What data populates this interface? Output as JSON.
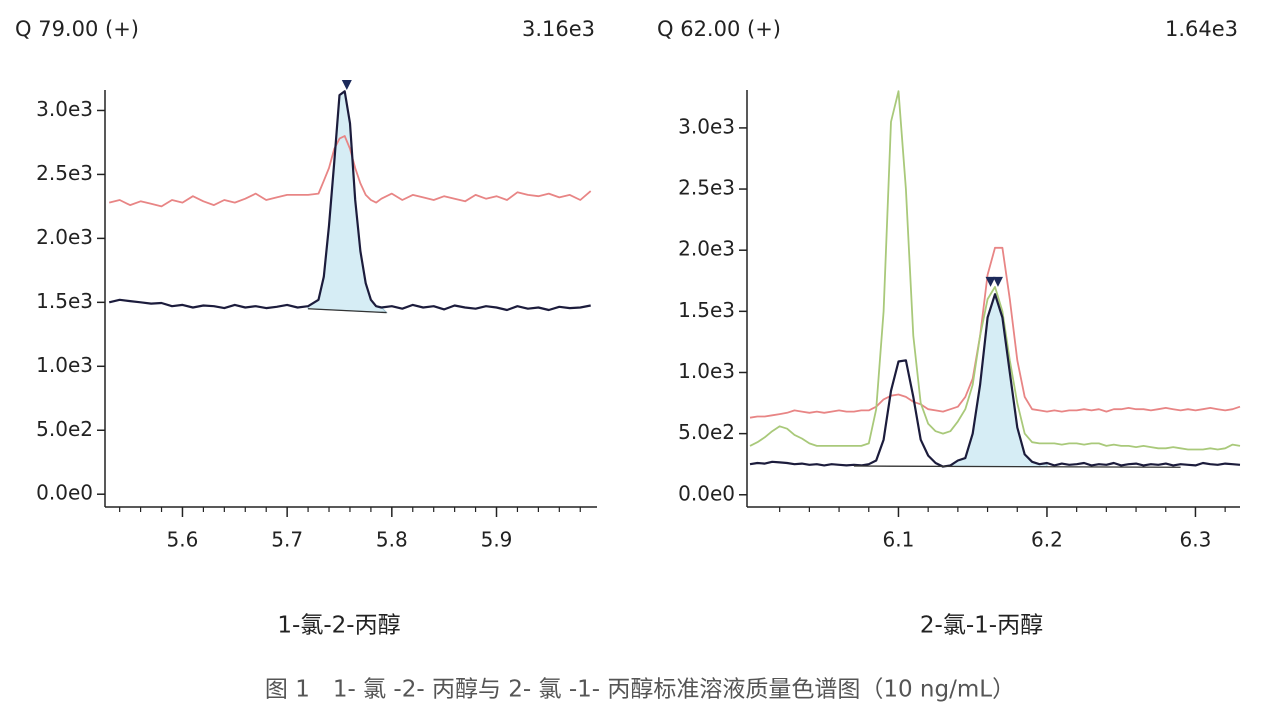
{
  "chart_data": [
    {
      "type": "line",
      "title": "Q 79.00 (+)",
      "intensity": "3.16e3",
      "caption": "1-氯-2-丙醇",
      "xlim": [
        5.526,
        5.996
      ],
      "xticks": [
        5.6,
        5.7,
        5.8,
        5.9
      ],
      "xminorticks": [
        5.54,
        5.56,
        5.58,
        5.62,
        5.64,
        5.66,
        5.68,
        5.72,
        5.74,
        5.76,
        5.78,
        5.82,
        5.84,
        5.86,
        5.88,
        5.92,
        5.94,
        5.96,
        5.98
      ],
      "ylim": [
        -100,
        3160
      ],
      "yticks": [
        {
          "value": 0,
          "label": "0.0e0"
        },
        {
          "value": 500,
          "label": "5.0e2"
        },
        {
          "value": 1000,
          "label": "1.0e3"
        },
        {
          "value": 1500,
          "label": "1.5e3"
        },
        {
          "value": 2000,
          "label": "2.0e3"
        },
        {
          "value": 2500,
          "label": "2.5e3"
        },
        {
          "value": 3000,
          "label": "3.0e3"
        }
      ],
      "x": [
        5.53,
        5.54,
        5.55,
        5.56,
        5.57,
        5.58,
        5.59,
        5.6,
        5.61,
        5.62,
        5.63,
        5.64,
        5.65,
        5.66,
        5.67,
        5.68,
        5.69,
        5.7,
        5.71,
        5.72,
        5.73,
        5.735,
        5.74,
        5.745,
        5.75,
        5.755,
        5.76,
        5.765,
        5.77,
        5.775,
        5.78,
        5.785,
        5.79,
        5.8,
        5.81,
        5.82,
        5.83,
        5.84,
        5.85,
        5.86,
        5.87,
        5.88,
        5.89,
        5.9,
        5.91,
        5.92,
        5.93,
        5.94,
        5.95,
        5.96,
        5.97,
        5.98,
        5.99
      ],
      "series": [
        {
          "color": "#e88585",
          "values": [
            2280,
            2300,
            2260,
            2290,
            2270,
            2250,
            2300,
            2280,
            2330,
            2290,
            2260,
            2300,
            2280,
            2310,
            2350,
            2300,
            2320,
            2340,
            2340,
            2340,
            2350,
            2450,
            2550,
            2700,
            2780,
            2800,
            2700,
            2550,
            2430,
            2340,
            2300,
            2280,
            2310,
            2350,
            2300,
            2340,
            2320,
            2300,
            2330,
            2310,
            2290,
            2340,
            2310,
            2330,
            2300,
            2360,
            2340,
            2330,
            2350,
            2320,
            2340,
            2300,
            2370
          ]
        },
        {
          "color": "#1c1c3c",
          "values": [
            1500,
            1520,
            1510,
            1500,
            1490,
            1495,
            1470,
            1480,
            1460,
            1475,
            1470,
            1455,
            1480,
            1460,
            1470,
            1455,
            1465,
            1480,
            1460,
            1470,
            1520,
            1700,
            2100,
            2600,
            3120,
            3150,
            2900,
            2300,
            1900,
            1650,
            1520,
            1470,
            1460,
            1470,
            1450,
            1480,
            1460,
            1470,
            1445,
            1475,
            1460,
            1450,
            1470,
            1460,
            1440,
            1470,
            1450,
            1460,
            1440,
            1465,
            1455,
            1460,
            1475
          ]
        }
      ],
      "peak_series": 1,
      "peak_range": [
        5.72,
        5.795
      ],
      "baseline": {
        "x": [
          5.72,
          5.795
        ],
        "values": [
          1450,
          1420
        ]
      },
      "apexes": [
        {
          "x": 5.757,
          "value": 3160
        }
      ],
      "peak_fill": "#d6edf5"
    },
    {
      "type": "line",
      "title": "Q 62.00 (+)",
      "intensity": "1.64e3",
      "caption": "2-氯-1-丙醇",
      "xlim": [
        5.998,
        6.33
      ],
      "xticks": [
        6.1,
        6.2,
        6.3
      ],
      "xminorticks": [
        6.02,
        6.04,
        6.06,
        6.08,
        6.12,
        6.14,
        6.16,
        6.18,
        6.22,
        6.24,
        6.26,
        6.28,
        6.32
      ],
      "ylim": [
        -100,
        3310
      ],
      "yticks": [
        {
          "value": 0,
          "label": "0.0e0"
        },
        {
          "value": 500,
          "label": "5.0e2"
        },
        {
          "value": 1000,
          "label": "1.0e3"
        },
        {
          "value": 1500,
          "label": "1.5e3"
        },
        {
          "value": 2000,
          "label": "2.0e3"
        },
        {
          "value": 2500,
          "label": "2.5e3"
        },
        {
          "value": 3000,
          "label": "3.0e3"
        }
      ],
      "x": [
        6.0,
        6.005,
        6.01,
        6.015,
        6.02,
        6.025,
        6.03,
        6.035,
        6.04,
        6.045,
        6.05,
        6.055,
        6.06,
        6.065,
        6.07,
        6.075,
        6.08,
        6.085,
        6.09,
        6.095,
        6.1,
        6.105,
        6.11,
        6.115,
        6.12,
        6.125,
        6.13,
        6.135,
        6.14,
        6.145,
        6.15,
        6.155,
        6.16,
        6.165,
        6.17,
        6.175,
        6.18,
        6.185,
        6.19,
        6.195,
        6.2,
        6.205,
        6.21,
        6.215,
        6.22,
        6.225,
        6.23,
        6.235,
        6.24,
        6.245,
        6.25,
        6.255,
        6.26,
        6.265,
        6.27,
        6.275,
        6.28,
        6.285,
        6.29,
        6.295,
        6.3,
        6.305,
        6.31,
        6.315,
        6.32,
        6.325,
        6.33
      ],
      "series": [
        {
          "color": "#e88585",
          "values": [
            630,
            640,
            640,
            650,
            660,
            670,
            690,
            680,
            670,
            680,
            670,
            680,
            690,
            680,
            680,
            690,
            690,
            720,
            780,
            810,
            820,
            800,
            760,
            740,
            700,
            690,
            680,
            700,
            720,
            800,
            950,
            1300,
            1800,
            2020,
            2020,
            1600,
            1100,
            800,
            700,
            690,
            680,
            690,
            680,
            690,
            690,
            700,
            690,
            700,
            680,
            700,
            700,
            710,
            700,
            700,
            690,
            700,
            710,
            700,
            690,
            700,
            690,
            700,
            710,
            700,
            690,
            700,
            720
          ]
        },
        {
          "color": "#a9c97a",
          "values": [
            400,
            430,
            470,
            520,
            560,
            540,
            490,
            460,
            420,
            400,
            400,
            400,
            400,
            400,
            400,
            400,
            420,
            700,
            1500,
            3050,
            3300,
            2500,
            1300,
            750,
            580,
            520,
            500,
            520,
            600,
            700,
            900,
            1300,
            1600,
            1700,
            1500,
            1100,
            750,
            500,
            430,
            420,
            420,
            420,
            410,
            420,
            420,
            410,
            420,
            420,
            400,
            410,
            400,
            400,
            390,
            400,
            390,
            380,
            380,
            390,
            380,
            370,
            370,
            370,
            380,
            370,
            380,
            410,
            400
          ]
        },
        {
          "color": "#1c1c3c",
          "values": [
            250,
            260,
            255,
            270,
            265,
            260,
            250,
            255,
            245,
            250,
            240,
            250,
            245,
            240,
            245,
            240,
            250,
            280,
            450,
            850,
            1090,
            1100,
            800,
            450,
            320,
            260,
            230,
            240,
            280,
            300,
            500,
            900,
            1450,
            1640,
            1450,
            1000,
            550,
            330,
            270,
            250,
            260,
            240,
            255,
            245,
            250,
            260,
            240,
            250,
            245,
            260,
            240,
            250,
            255,
            240,
            250,
            245,
            255,
            240,
            250,
            245,
            240,
            260,
            250,
            245,
            255,
            250,
            245
          ]
        }
      ],
      "peak_series": 2,
      "peak_range": [
        6.13,
        6.2
      ],
      "baseline": {
        "x": [
          6.07,
          6.29
        ],
        "values": [
          235,
          225
        ]
      },
      "apexes": [
        {
          "x": 6.162,
          "value": 1700
        },
        {
          "x": 6.167,
          "value": 1700
        }
      ],
      "peak_fill": "#d6edf5"
    }
  ],
  "caption": "图 1　1- 氯 -2- 丙醇与 2- 氯 -1- 丙醇标准溶液质量色谱图（10 ng/mL）"
}
